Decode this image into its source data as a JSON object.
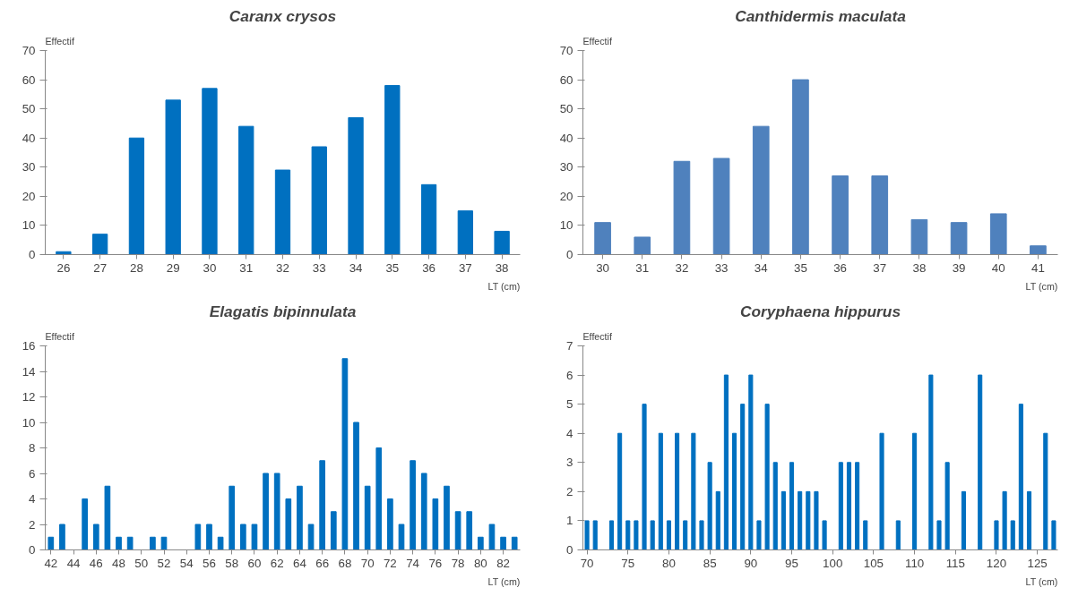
{
  "chart_data": [
    {
      "type": "bar",
      "title": "Caranx crysos",
      "xlabel": "LT (cm)",
      "ylabel": "Effectif",
      "categories": [
        "26",
        "27",
        "28",
        "29",
        "30",
        "31",
        "32",
        "33",
        "34",
        "35",
        "36",
        "37",
        "38"
      ],
      "values": [
        1,
        7,
        40,
        53,
        57,
        44,
        29,
        37,
        47,
        58,
        24,
        15,
        8
      ],
      "color": "#0070c0",
      "ylim": [
        0,
        70
      ],
      "yticks": [
        0,
        10,
        20,
        30,
        40,
        50,
        60,
        70
      ],
      "grid": false
    },
    {
      "type": "bar",
      "title": "Canthidermis maculata",
      "xlabel": "LT (cm)",
      "ylabel": "Effectif",
      "categories": [
        "30",
        "31",
        "32",
        "33",
        "34",
        "35",
        "36",
        "37",
        "38",
        "39",
        "40",
        "41"
      ],
      "values": [
        11,
        6,
        32,
        33,
        44,
        60,
        27,
        27,
        12,
        11,
        14,
        3
      ],
      "color": "#4f81bd",
      "ylim": [
        0,
        70
      ],
      "yticks": [
        0,
        10,
        20,
        30,
        40,
        50,
        60,
        70
      ],
      "grid": false
    },
    {
      "type": "bar",
      "title": "Elagatis bipinnulata",
      "xlabel": "LT (cm)",
      "ylabel": "Effectif",
      "categories": [
        "42",
        null,
        "44",
        null,
        "46",
        null,
        "48",
        null,
        "50",
        null,
        "52",
        null,
        "54",
        null,
        "56",
        null,
        "58",
        null,
        "60",
        null,
        "62",
        null,
        "64",
        null,
        "66",
        null,
        "68",
        null,
        "70",
        null,
        "72",
        null,
        "74",
        null,
        "76",
        null,
        "78",
        null,
        "80",
        null,
        "82",
        null
      ],
      "values": [
        1,
        2,
        0,
        4,
        2,
        5,
        1,
        1,
        0,
        1,
        1,
        0,
        0,
        2,
        2,
        1,
        5,
        2,
        2,
        6,
        6,
        4,
        5,
        2,
        7,
        3,
        15,
        10,
        5,
        8,
        4,
        2,
        7,
        6,
        4,
        5,
        3,
        3,
        1,
        2,
        1,
        1
      ],
      "color": "#0070c0",
      "ylim": [
        0,
        16
      ],
      "yticks": [
        0,
        2,
        4,
        6,
        8,
        10,
        12,
        14,
        16
      ],
      "grid": false
    },
    {
      "type": "bar",
      "title": "Coryphaena hippurus",
      "xlabel": "LT (cm)",
      "ylabel": "Effectif",
      "categories": [
        "70",
        null,
        null,
        null,
        null,
        "75",
        null,
        null,
        null,
        null,
        "80",
        null,
        null,
        null,
        null,
        "85",
        null,
        null,
        null,
        null,
        "90",
        null,
        null,
        null,
        null,
        "95",
        null,
        null,
        null,
        null,
        "100",
        null,
        null,
        null,
        null,
        "105",
        null,
        null,
        null,
        null,
        "110",
        null,
        null,
        null,
        null,
        "115",
        null,
        null,
        null,
        null,
        "120",
        null,
        null,
        null,
        null,
        "125",
        null,
        null
      ],
      "values": [
        1,
        1,
        0,
        1,
        4,
        1,
        1,
        5,
        1,
        4,
        1,
        4,
        1,
        4,
        1,
        3,
        2,
        6,
        4,
        5,
        6,
        1,
        5,
        3,
        2,
        3,
        2,
        2,
        2,
        1,
        0,
        3,
        3,
        3,
        1,
        0,
        4,
        0,
        1,
        0,
        4,
        0,
        6,
        1,
        3,
        0,
        2,
        0,
        6,
        0,
        1,
        2,
        1,
        5,
        2,
        0,
        4,
        1
      ],
      "color": "#0070c0",
      "ylim": [
        0,
        7
      ],
      "yticks": [
        0,
        1,
        2,
        3,
        4,
        5,
        6,
        7
      ],
      "grid": false
    }
  ]
}
